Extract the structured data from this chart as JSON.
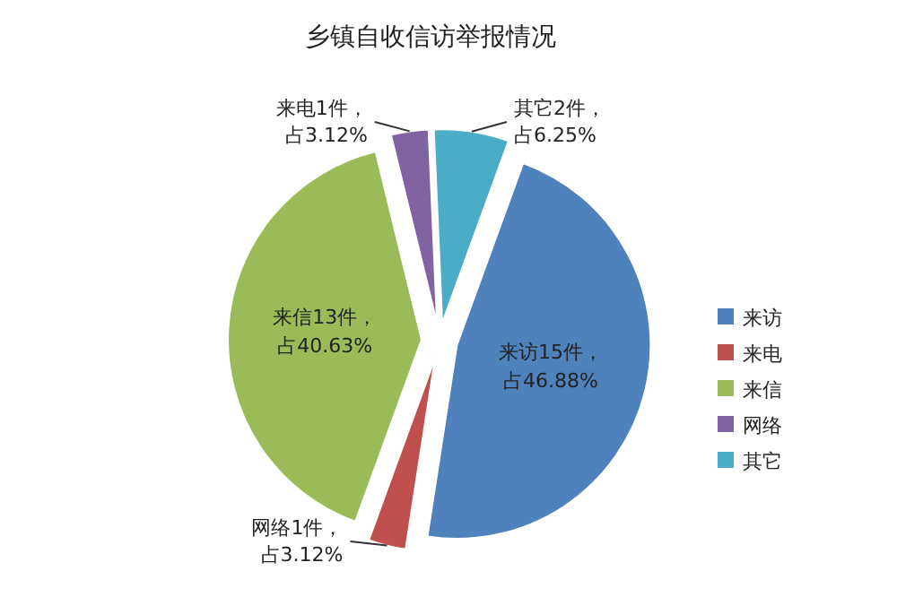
{
  "chart_data": {
    "type": "pie",
    "title": "乡镇自收信访举报情况",
    "categories": [
      "来访",
      "来电",
      "来信",
      "网络",
      "其它"
    ],
    "values": [
      15,
      1,
      13,
      1,
      2
    ],
    "colors": [
      "#4f81bd",
      "#c0504d",
      "#9bbb59",
      "#8064a2",
      "#4bacc6"
    ],
    "value_labels": [
      "来访15件，占46.88%",
      "网络1件，占3.12%",
      "来信13件，占40.63%",
      "来电1件，占3.12%",
      "其它2件，占6.25%"
    ],
    "legend": "right"
  }
}
